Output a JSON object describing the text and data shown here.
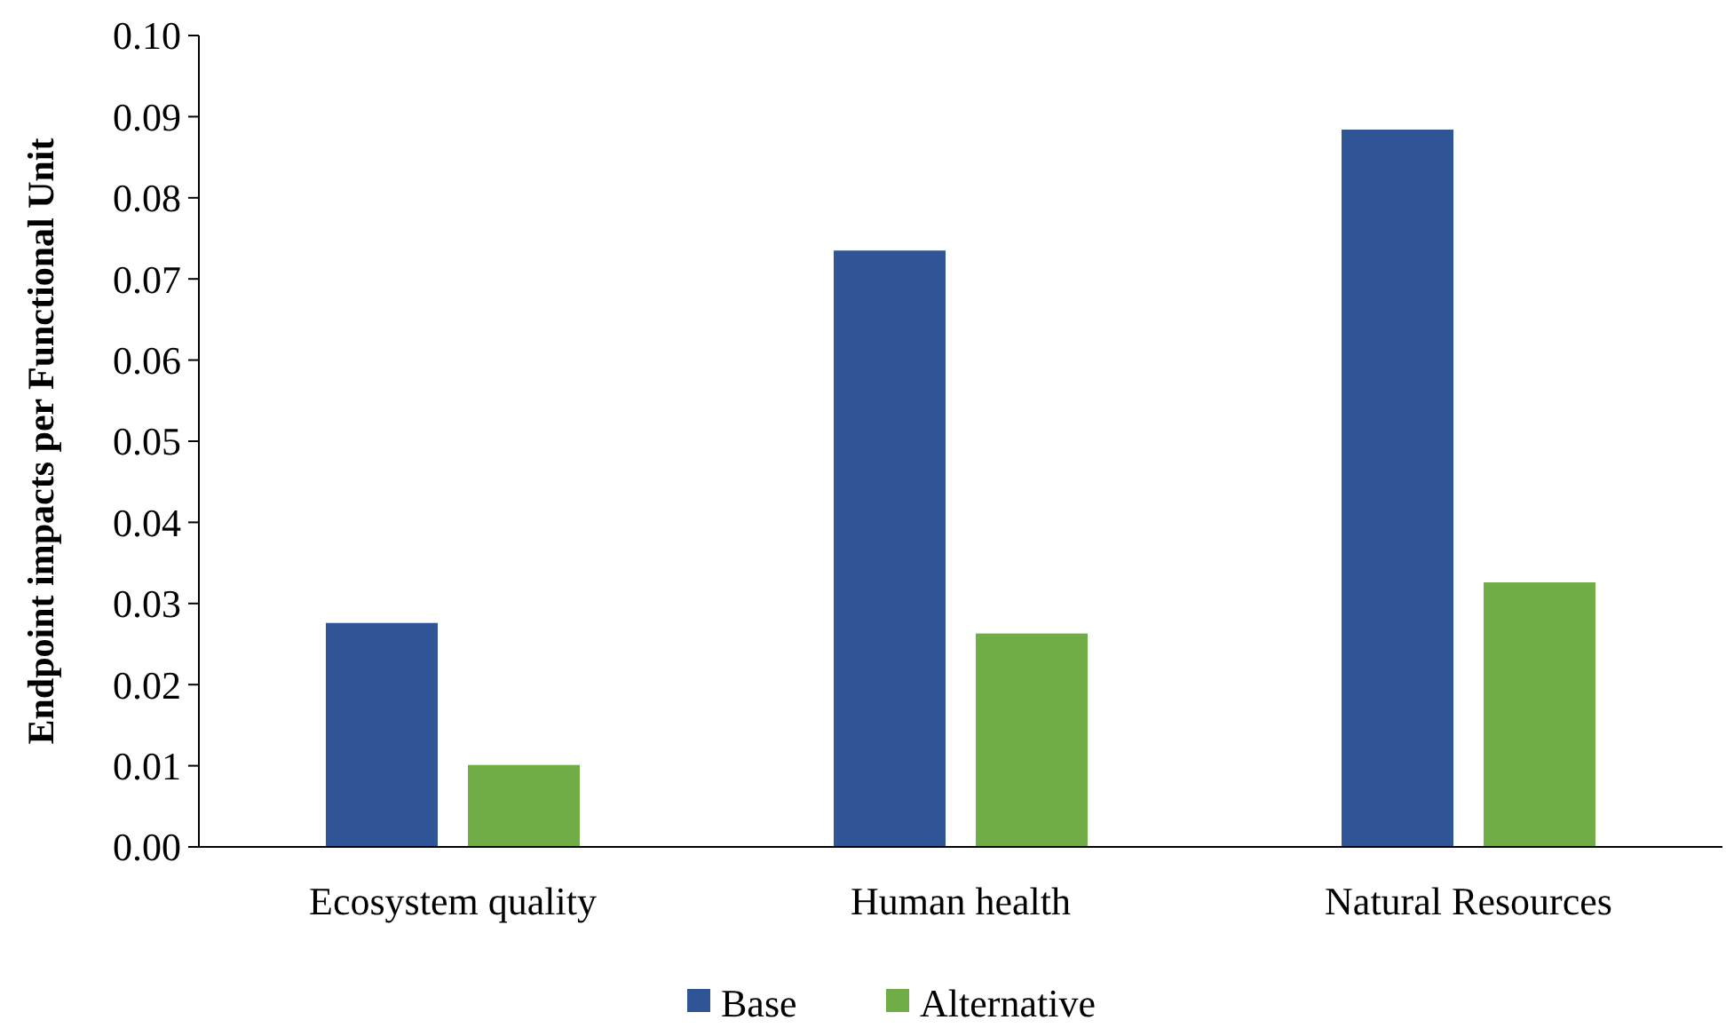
{
  "chart_data": {
    "type": "bar",
    "ylabel": "Endpoint impacts per Functional Unit",
    "categories": [
      "Ecosystem quality",
      "Human health",
      "Natural Resources"
    ],
    "series": [
      {
        "name": "Base",
        "color": "#2f5597",
        "values": [
          0.0276,
          0.0735,
          0.0884
        ]
      },
      {
        "name": "Alternative",
        "color": "#70ad47",
        "values": [
          0.0101,
          0.0263,
          0.0326
        ]
      }
    ],
    "ylim": [
      0,
      0.1
    ],
    "yticks": [
      {
        "value": 0,
        "label": "0.00"
      },
      0.01,
      0.02,
      0.03,
      0.04,
      0.05,
      0.06,
      0.07,
      0.08,
      0.09,
      {
        "value": 0.1,
        "label": "0.10"
      }
    ],
    "grid": false,
    "legend": "bottom"
  }
}
